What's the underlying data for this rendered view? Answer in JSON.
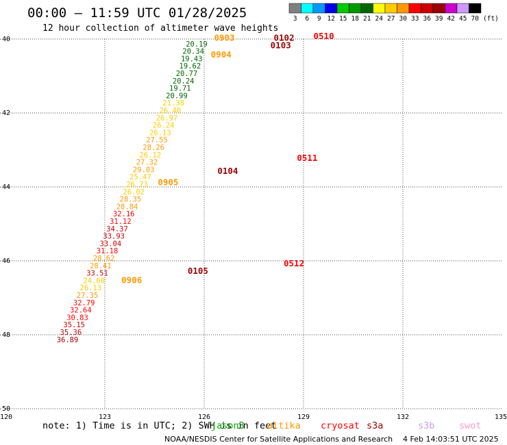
{
  "chart_data": {
    "type": "scatter",
    "title": "00:00 – 11:59 UTC 01/28/2025",
    "subtitle": "12 hour collection of altimeter wave heights",
    "x_ticks": [
      "120",
      "123",
      "126",
      "129",
      "132",
      "135"
    ],
    "y_ticks": [
      "-40",
      "-42",
      "-44",
      "-46",
      "-48",
      "-50"
    ],
    "xlim": [
      120,
      135
    ],
    "ylim": [
      -50,
      -40
    ],
    "grid": true,
    "color_scale": {
      "labels": [
        "3",
        "6",
        "9",
        "12",
        "15",
        "18",
        "21",
        "24",
        "27",
        "30",
        "33",
        "36",
        "39",
        "42",
        "45",
        "70"
      ],
      "unit": "(ft)",
      "colors": [
        "#808080",
        "#00ffff",
        "#0099ff",
        "#0000ee",
        "#00cc00",
        "#009900",
        "#006600",
        "#ffff00",
        "#ffcc00",
        "#ff9900",
        "#ff0000",
        "#cc0000",
        "#990000",
        "#cc00cc",
        "#cc99ff",
        "#000000"
      ]
    },
    "series": [
      {
        "color": "#1a8a1a",
        "points": [
          [
            126.1,
            -40.2,
            "20.19"
          ],
          [
            126.0,
            -40.4,
            "20.34"
          ],
          [
            125.95,
            -40.6,
            "19.43"
          ],
          [
            125.9,
            -40.8,
            "19.62"
          ],
          [
            125.8,
            -41.0,
            "20.77"
          ],
          [
            125.7,
            -41.2,
            "20.24"
          ],
          [
            125.6,
            -41.4,
            "19.71"
          ],
          [
            125.5,
            -41.6,
            "20.99"
          ],
          [
            125.4,
            -41.8,
            "21.38"
          ],
          [
            125.3,
            -42.0,
            "26.40"
          ],
          [
            125.2,
            -42.2,
            "26.97"
          ],
          [
            125.1,
            -42.4,
            "26.24"
          ],
          [
            125.0,
            -42.6,
            "26.13"
          ],
          [
            124.9,
            -42.8,
            "27.55"
          ],
          [
            124.8,
            -43.0,
            "28.26"
          ],
          [
            124.7,
            -43.2,
            "26.12"
          ],
          [
            124.6,
            -43.4,
            "27.32"
          ],
          [
            124.5,
            -43.6,
            "29.03"
          ],
          [
            124.4,
            -43.8,
            "25.47"
          ],
          [
            124.3,
            -44.0,
            "26.73"
          ],
          [
            124.2,
            -44.2,
            "26.02"
          ],
          [
            124.1,
            -44.4,
            "28.35"
          ],
          [
            124.0,
            -44.6,
            "28.84"
          ],
          [
            123.9,
            -44.8,
            "32.16"
          ],
          [
            123.8,
            -45.0,
            "31.12"
          ],
          [
            123.7,
            -45.2,
            "34.37"
          ],
          [
            123.6,
            -45.4,
            "33.93"
          ],
          [
            123.5,
            -45.6,
            "33.04"
          ],
          [
            123.4,
            -45.8,
            "31.18"
          ],
          [
            123.3,
            -46.0,
            "28.62"
          ],
          [
            123.2,
            -46.2,
            "28.41"
          ],
          [
            123.1,
            -46.4,
            "33.51"
          ],
          [
            123.0,
            -46.6,
            "24.60"
          ],
          [
            122.9,
            -46.8,
            "26.13"
          ],
          [
            122.8,
            -47.0,
            "27.35"
          ],
          [
            122.7,
            -47.2,
            "32.79"
          ],
          [
            122.6,
            -47.4,
            "32.64"
          ],
          [
            122.5,
            -47.6,
            "30.83"
          ],
          [
            122.4,
            -47.8,
            "35.15"
          ],
          [
            122.3,
            -48.0,
            "35.36"
          ],
          [
            122.2,
            -48.2,
            "36.89"
          ]
        ]
      }
    ],
    "passes": [
      "0903",
      "0904",
      "0905",
      "0906",
      "0102",
      "0103",
      "0104",
      "0105",
      "0510",
      "0511",
      "0512"
    ]
  },
  "satellites": [
    {
      "name": "jason3",
      "color": "#00aa00"
    },
    {
      "name": "altika",
      "color": "#ff9900"
    },
    {
      "name": "cryosat",
      "color": "#ff0000"
    },
    {
      "name": "s3a",
      "color": "#990000"
    },
    {
      "name": "s3b",
      "color": "#cc99ff"
    },
    {
      "name": "swot",
      "color": "#ff99cc"
    }
  ],
  "note": "note: 1) Time is in UTC; 2) SWH is in feet",
  "credit": "NOAA/NESDIS Center for Satellite Applications and Research",
  "generated": "4 Feb 14:03:51 UTC 2025"
}
